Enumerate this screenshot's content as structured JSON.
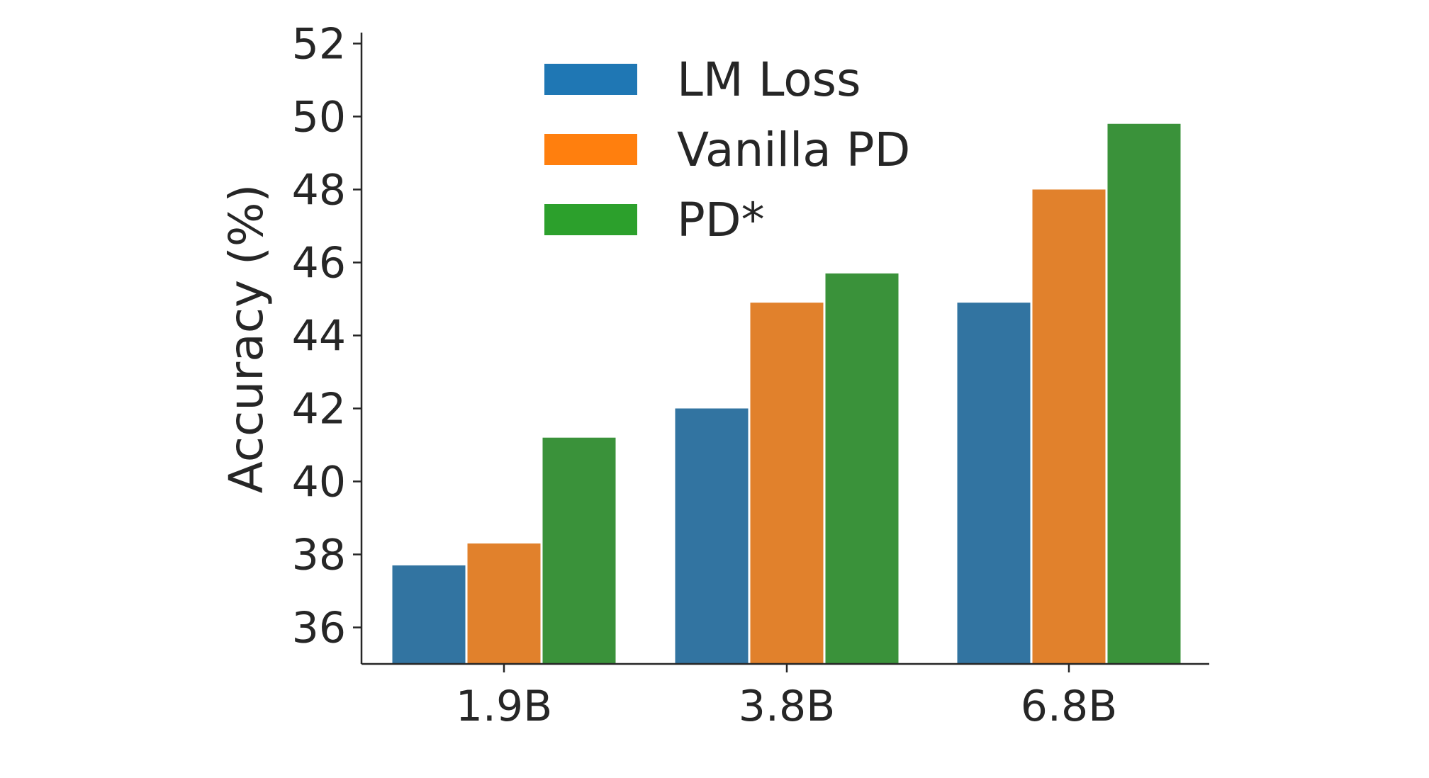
{
  "chart_data": {
    "type": "bar",
    "categories": [
      "1.9B",
      "3.8B",
      "6.8B"
    ],
    "series": [
      {
        "name": "LM Loss",
        "values": [
          37.7,
          42.0,
          44.9
        ],
        "color": "#3274a1",
        "legend_color": "#1f77b4"
      },
      {
        "name": "Vanilla PD",
        "values": [
          38.3,
          44.9,
          48.0
        ],
        "color": "#e1812c",
        "legend_color": "#ff7f0e"
      },
      {
        "name": "PD*",
        "values": [
          41.2,
          45.7,
          49.8
        ],
        "color": "#3a923a",
        "legend_color": "#2ca02c"
      }
    ],
    "title": "",
    "xlabel": "",
    "ylabel": "Accuracy (%)",
    "ylim": [
      35,
      52.3
    ],
    "yticks": [
      36,
      38,
      40,
      42,
      44,
      46,
      48,
      50,
      52
    ],
    "grid": false,
    "legend_position": "top-center"
  }
}
